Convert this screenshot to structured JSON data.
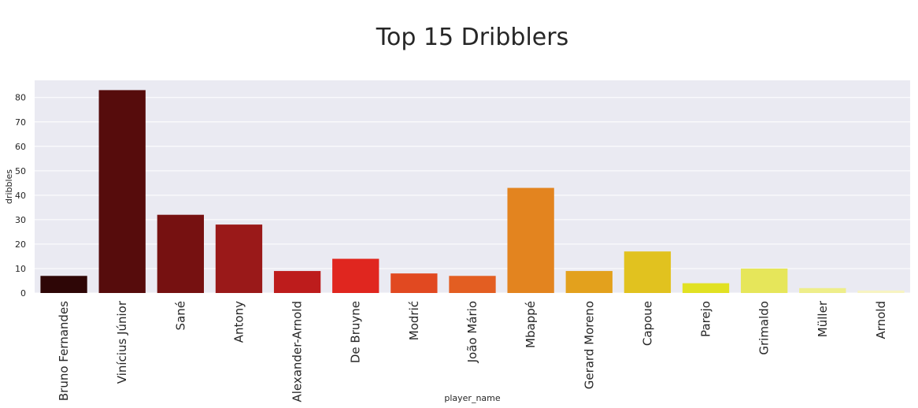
{
  "chart_data": {
    "type": "bar",
    "title": "Top 15 Dribblers",
    "xlabel": "player_name",
    "ylabel": "dribbles",
    "ylim": [
      0,
      87
    ],
    "yticks": [
      0,
      10,
      20,
      30,
      40,
      50,
      60,
      70,
      80
    ],
    "grid": true,
    "categories": [
      "Bruno Fernandes",
      "Vinícius Júnior",
      "Sané",
      "Antony",
      "Alexander-Arnold",
      "De Bruyne",
      "Modrić",
      "João Mário",
      "Mbappé",
      "Gerard Moreno",
      "Capoue",
      "Parejo",
      "Grimaldo",
      "Müller",
      "Arnold"
    ],
    "values": [
      7,
      83,
      32,
      28,
      9,
      14,
      8,
      7,
      43,
      9,
      17,
      4,
      10,
      2,
      1
    ],
    "colors": [
      "#2e0606",
      "#560c0c",
      "#761111",
      "#9a1919",
      "#bd1c1c",
      "#e0261f",
      "#e14921",
      "#e35e22",
      "#e3841f",
      "#e3a11d",
      "#e1c21f",
      "#e1e123",
      "#e6e65a",
      "#eeee8a",
      "#f7f4c2"
    ]
  }
}
